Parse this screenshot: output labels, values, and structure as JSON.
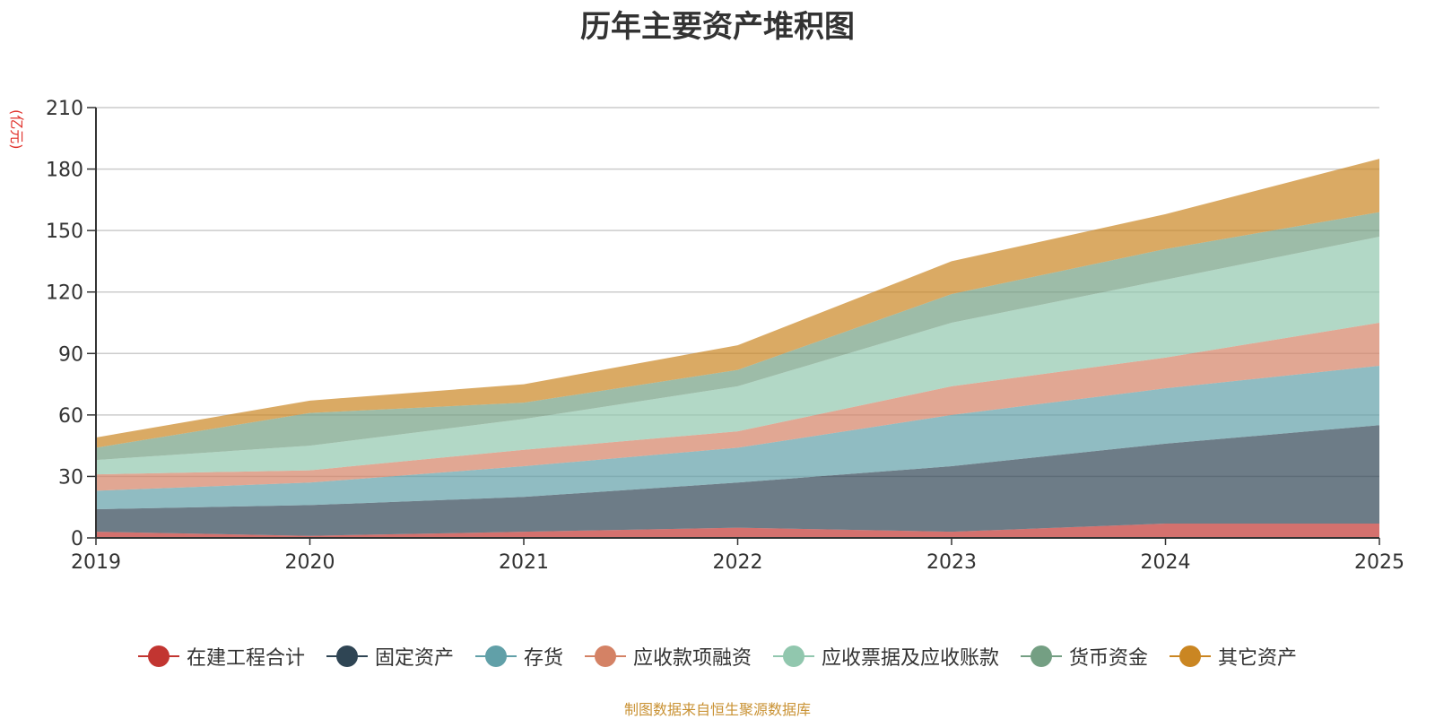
{
  "chart_data": {
    "type": "area",
    "stacked": true,
    "title": "历年主要资产堆积图",
    "unit": "(亿元)",
    "x": [
      "2019",
      "2020",
      "2021",
      "2022",
      "2023",
      "2024",
      "2025"
    ],
    "ylim": [
      0,
      210
    ],
    "yticks": [
      0,
      30,
      60,
      90,
      120,
      150,
      180,
      210
    ],
    "grid": true,
    "legend_position": "bottom",
    "series": [
      {
        "name": "在建工程合计",
        "color": "#c23531",
        "values": [
          3,
          1,
          3,
          5,
          3,
          7,
          7
        ]
      },
      {
        "name": "固定资产",
        "color": "#2f4554",
        "values": [
          11,
          15,
          17,
          22,
          32,
          39,
          48
        ]
      },
      {
        "name": "存货",
        "color": "#61a0a8",
        "values": [
          9,
          11,
          15,
          17,
          25,
          27,
          29
        ]
      },
      {
        "name": "应收款项融资",
        "color": "#d48265",
        "values": [
          8,
          6,
          8,
          8,
          14,
          15,
          21
        ]
      },
      {
        "name": "应收票据及应收账款",
        "color": "#91c7ae",
        "values": [
          7,
          12,
          15,
          22,
          31,
          38,
          42
        ]
      },
      {
        "name": "货币资金",
        "color": "#749f83",
        "values": [
          6,
          16,
          8,
          8,
          14,
          15,
          12
        ]
      },
      {
        "name": "其它资产",
        "color": "#ca8622",
        "values": [
          5,
          6,
          9,
          12,
          16,
          17,
          26
        ]
      }
    ]
  },
  "source": "制图数据来自恒生聚源数据库"
}
